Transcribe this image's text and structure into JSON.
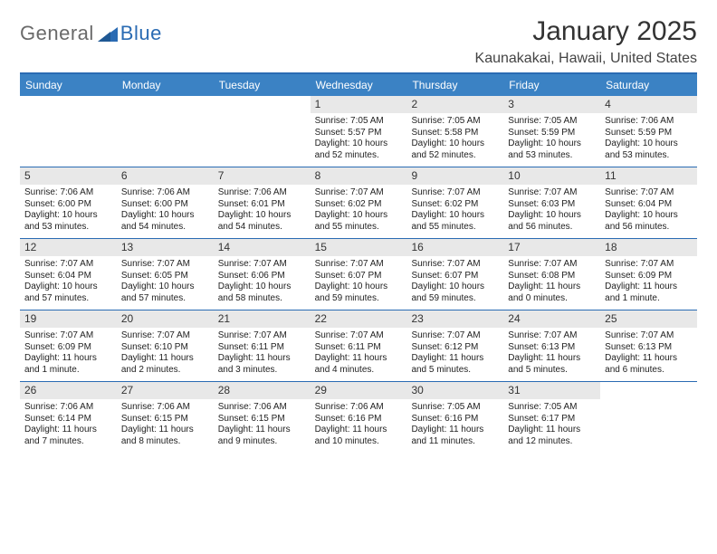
{
  "logo": {
    "text1": "General",
    "text2": "Blue"
  },
  "title": "January 2025",
  "location": "Kaunakakai, Hawaii, United States",
  "colors": {
    "header_bg": "#3b82c4",
    "border": "#2a6bb3",
    "num_bg": "#e8e8e8",
    "logo_gray": "#6a6a6a",
    "logo_blue": "#2a6bb3"
  },
  "day_names": [
    "Sunday",
    "Monday",
    "Tuesday",
    "Wednesday",
    "Thursday",
    "Friday",
    "Saturday"
  ],
  "weeks": [
    [
      {
        "n": "",
        "sr": "",
        "ss": "",
        "dl": ""
      },
      {
        "n": "",
        "sr": "",
        "ss": "",
        "dl": ""
      },
      {
        "n": "",
        "sr": "",
        "ss": "",
        "dl": ""
      },
      {
        "n": "1",
        "sr": "Sunrise: 7:05 AM",
        "ss": "Sunset: 5:57 PM",
        "dl": "Daylight: 10 hours and 52 minutes."
      },
      {
        "n": "2",
        "sr": "Sunrise: 7:05 AM",
        "ss": "Sunset: 5:58 PM",
        "dl": "Daylight: 10 hours and 52 minutes."
      },
      {
        "n": "3",
        "sr": "Sunrise: 7:05 AM",
        "ss": "Sunset: 5:59 PM",
        "dl": "Daylight: 10 hours and 53 minutes."
      },
      {
        "n": "4",
        "sr": "Sunrise: 7:06 AM",
        "ss": "Sunset: 5:59 PM",
        "dl": "Daylight: 10 hours and 53 minutes."
      }
    ],
    [
      {
        "n": "5",
        "sr": "Sunrise: 7:06 AM",
        "ss": "Sunset: 6:00 PM",
        "dl": "Daylight: 10 hours and 53 minutes."
      },
      {
        "n": "6",
        "sr": "Sunrise: 7:06 AM",
        "ss": "Sunset: 6:00 PM",
        "dl": "Daylight: 10 hours and 54 minutes."
      },
      {
        "n": "7",
        "sr": "Sunrise: 7:06 AM",
        "ss": "Sunset: 6:01 PM",
        "dl": "Daylight: 10 hours and 54 minutes."
      },
      {
        "n": "8",
        "sr": "Sunrise: 7:07 AM",
        "ss": "Sunset: 6:02 PM",
        "dl": "Daylight: 10 hours and 55 minutes."
      },
      {
        "n": "9",
        "sr": "Sunrise: 7:07 AM",
        "ss": "Sunset: 6:02 PM",
        "dl": "Daylight: 10 hours and 55 minutes."
      },
      {
        "n": "10",
        "sr": "Sunrise: 7:07 AM",
        "ss": "Sunset: 6:03 PM",
        "dl": "Daylight: 10 hours and 56 minutes."
      },
      {
        "n": "11",
        "sr": "Sunrise: 7:07 AM",
        "ss": "Sunset: 6:04 PM",
        "dl": "Daylight: 10 hours and 56 minutes."
      }
    ],
    [
      {
        "n": "12",
        "sr": "Sunrise: 7:07 AM",
        "ss": "Sunset: 6:04 PM",
        "dl": "Daylight: 10 hours and 57 minutes."
      },
      {
        "n": "13",
        "sr": "Sunrise: 7:07 AM",
        "ss": "Sunset: 6:05 PM",
        "dl": "Daylight: 10 hours and 57 minutes."
      },
      {
        "n": "14",
        "sr": "Sunrise: 7:07 AM",
        "ss": "Sunset: 6:06 PM",
        "dl": "Daylight: 10 hours and 58 minutes."
      },
      {
        "n": "15",
        "sr": "Sunrise: 7:07 AM",
        "ss": "Sunset: 6:07 PM",
        "dl": "Daylight: 10 hours and 59 minutes."
      },
      {
        "n": "16",
        "sr": "Sunrise: 7:07 AM",
        "ss": "Sunset: 6:07 PM",
        "dl": "Daylight: 10 hours and 59 minutes."
      },
      {
        "n": "17",
        "sr": "Sunrise: 7:07 AM",
        "ss": "Sunset: 6:08 PM",
        "dl": "Daylight: 11 hours and 0 minutes."
      },
      {
        "n": "18",
        "sr": "Sunrise: 7:07 AM",
        "ss": "Sunset: 6:09 PM",
        "dl": "Daylight: 11 hours and 1 minute."
      }
    ],
    [
      {
        "n": "19",
        "sr": "Sunrise: 7:07 AM",
        "ss": "Sunset: 6:09 PM",
        "dl": "Daylight: 11 hours and 1 minute."
      },
      {
        "n": "20",
        "sr": "Sunrise: 7:07 AM",
        "ss": "Sunset: 6:10 PM",
        "dl": "Daylight: 11 hours and 2 minutes."
      },
      {
        "n": "21",
        "sr": "Sunrise: 7:07 AM",
        "ss": "Sunset: 6:11 PM",
        "dl": "Daylight: 11 hours and 3 minutes."
      },
      {
        "n": "22",
        "sr": "Sunrise: 7:07 AM",
        "ss": "Sunset: 6:11 PM",
        "dl": "Daylight: 11 hours and 4 minutes."
      },
      {
        "n": "23",
        "sr": "Sunrise: 7:07 AM",
        "ss": "Sunset: 6:12 PM",
        "dl": "Daylight: 11 hours and 5 minutes."
      },
      {
        "n": "24",
        "sr": "Sunrise: 7:07 AM",
        "ss": "Sunset: 6:13 PM",
        "dl": "Daylight: 11 hours and 5 minutes."
      },
      {
        "n": "25",
        "sr": "Sunrise: 7:07 AM",
        "ss": "Sunset: 6:13 PM",
        "dl": "Daylight: 11 hours and 6 minutes."
      }
    ],
    [
      {
        "n": "26",
        "sr": "Sunrise: 7:06 AM",
        "ss": "Sunset: 6:14 PM",
        "dl": "Daylight: 11 hours and 7 minutes."
      },
      {
        "n": "27",
        "sr": "Sunrise: 7:06 AM",
        "ss": "Sunset: 6:15 PM",
        "dl": "Daylight: 11 hours and 8 minutes."
      },
      {
        "n": "28",
        "sr": "Sunrise: 7:06 AM",
        "ss": "Sunset: 6:15 PM",
        "dl": "Daylight: 11 hours and 9 minutes."
      },
      {
        "n": "29",
        "sr": "Sunrise: 7:06 AM",
        "ss": "Sunset: 6:16 PM",
        "dl": "Daylight: 11 hours and 10 minutes."
      },
      {
        "n": "30",
        "sr": "Sunrise: 7:05 AM",
        "ss": "Sunset: 6:16 PM",
        "dl": "Daylight: 11 hours and 11 minutes."
      },
      {
        "n": "31",
        "sr": "Sunrise: 7:05 AM",
        "ss": "Sunset: 6:17 PM",
        "dl": "Daylight: 11 hours and 12 minutes."
      },
      {
        "n": "",
        "sr": "",
        "ss": "",
        "dl": ""
      }
    ]
  ]
}
